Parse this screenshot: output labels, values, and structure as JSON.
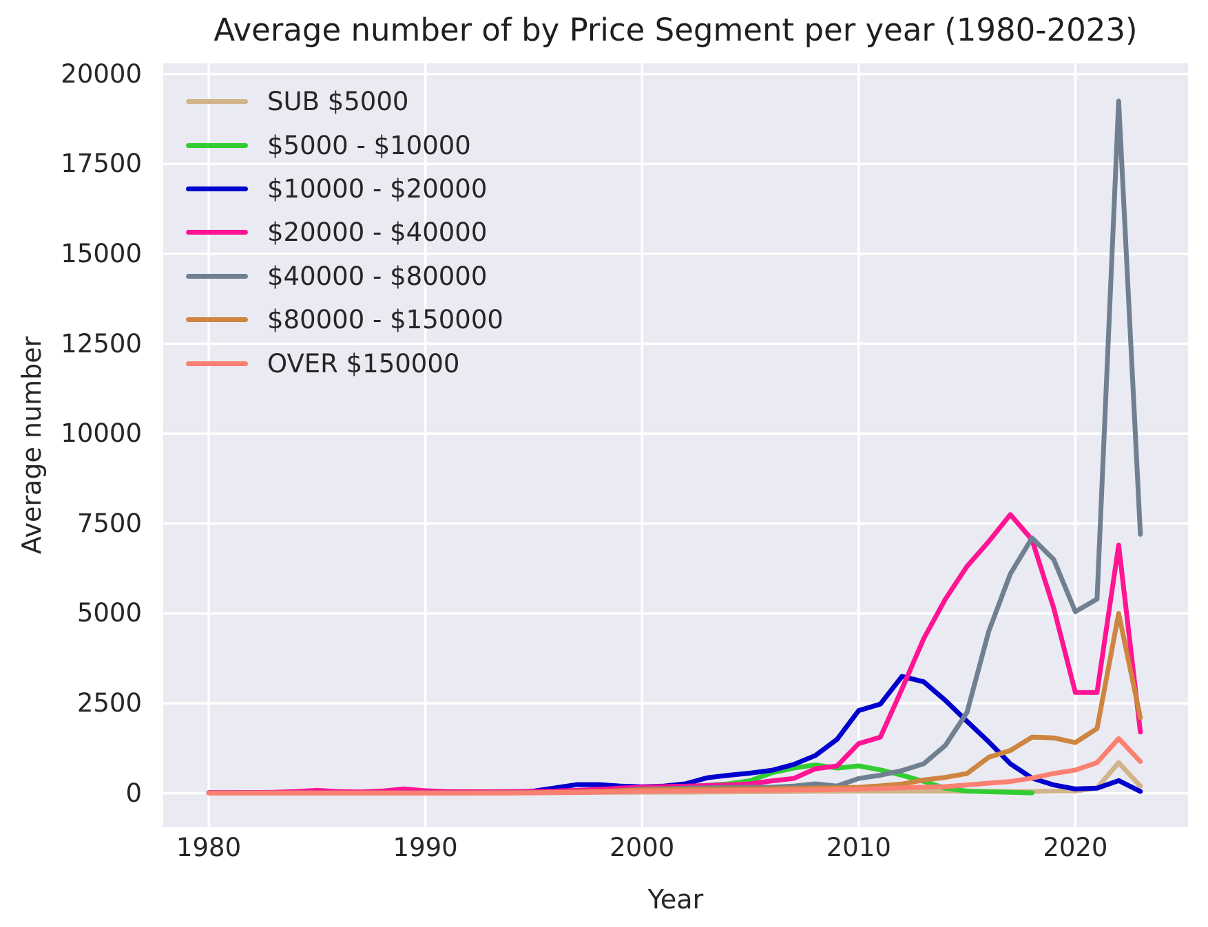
{
  "chart_data": {
    "type": "line",
    "title": "Average number of by Price Segment per year (1980-2023)",
    "xlabel": "Year",
    "ylabel": "Average number",
    "x_ticks": [
      1980,
      1990,
      2000,
      2010,
      2020
    ],
    "y_ticks": [
      0,
      2500,
      5000,
      7500,
      10000,
      12500,
      15000,
      17500,
      20000
    ],
    "xlim": [
      1977.9,
      2025.2
    ],
    "ylim": [
      -945,
      20300
    ],
    "grid": true,
    "legend_position": "upper-left",
    "axes_background": "#eaeaf2",
    "grid_color": "#ffffff",
    "text_color": "#262626",
    "line_width": 7,
    "years": [
      1980,
      1981,
      1982,
      1983,
      1984,
      1985,
      1986,
      1987,
      1988,
      1989,
      1990,
      1991,
      1992,
      1993,
      1994,
      1995,
      1996,
      1997,
      1998,
      1999,
      2000,
      2001,
      2002,
      2003,
      2004,
      2005,
      2006,
      2007,
      2008,
      2009,
      2010,
      2011,
      2012,
      2013,
      2014,
      2015,
      2016,
      2017,
      2018,
      2019,
      2020,
      2021,
      2022,
      2023
    ],
    "series": [
      {
        "name": "SUB $5000",
        "color": "#d2b48c",
        "values": [
          15,
          15,
          15,
          15,
          15,
          15,
          15,
          15,
          15,
          15,
          15,
          15,
          15,
          15,
          15,
          15,
          20,
          20,
          25,
          25,
          30,
          30,
          30,
          35,
          35,
          40,
          40,
          45,
          50,
          50,
          55,
          55,
          55,
          55,
          55,
          50,
          50,
          45,
          45,
          60,
          60,
          150,
          850,
          200
        ]
      },
      {
        "name": "$5000 - $10000",
        "color": "#32cd32",
        "values": [
          10,
          10,
          10,
          10,
          10,
          10,
          10,
          10,
          10,
          10,
          12,
          12,
          12,
          12,
          15,
          20,
          30,
          40,
          60,
          100,
          150,
          170,
          190,
          220,
          260,
          350,
          570,
          700,
          790,
          700,
          760,
          650,
          500,
          330,
          140,
          60,
          40,
          25,
          10,
          null,
          null,
          null,
          null,
          null
        ]
      },
      {
        "name": "$10000 - $20000",
        "color": "#0000cd",
        "values": [
          15,
          15,
          15,
          15,
          15,
          15,
          15,
          15,
          15,
          15,
          20,
          20,
          20,
          25,
          30,
          60,
          150,
          240,
          240,
          200,
          180,
          200,
          260,
          430,
          500,
          560,
          640,
          800,
          1050,
          1500,
          2300,
          2480,
          3250,
          3100,
          2580,
          2000,
          1430,
          820,
          420,
          230,
          120,
          140,
          350,
          50
        ]
      },
      {
        "name": "$20000 - $40000",
        "color": "#ff1493",
        "values": [
          15,
          15,
          20,
          25,
          45,
          80,
          45,
          35,
          60,
          120,
          70,
          45,
          40,
          40,
          45,
          50,
          60,
          80,
          110,
          140,
          170,
          185,
          195,
          215,
          230,
          260,
          345,
          410,
          680,
          760,
          1380,
          1560,
          2900,
          4300,
          5400,
          6310,
          7000,
          7750,
          7050,
          5150,
          2800,
          2800,
          6900,
          1700
        ]
      },
      {
        "name": "$40000 - $80000",
        "color": "#708090",
        "values": [
          8,
          8,
          8,
          8,
          8,
          8,
          8,
          8,
          8,
          8,
          10,
          10,
          10,
          15,
          15,
          20,
          25,
          30,
          45,
          70,
          115,
          125,
          140,
          150,
          160,
          165,
          170,
          200,
          260,
          200,
          410,
          500,
          630,
          820,
          1330,
          2250,
          4500,
          6100,
          7100,
          6500,
          5050,
          5400,
          19250,
          7200
        ]
      },
      {
        "name": "$80000 - $150000",
        "color": "#cd853f",
        "values": [
          5,
          5,
          5,
          5,
          5,
          5,
          5,
          5,
          5,
          5,
          5,
          5,
          8,
          8,
          10,
          15,
          25,
          35,
          50,
          70,
          95,
          100,
          105,
          110,
          115,
          120,
          125,
          135,
          145,
          150,
          165,
          205,
          255,
          370,
          440,
          550,
          1000,
          1190,
          1560,
          1540,
          1410,
          1800,
          5000,
          2100
        ]
      },
      {
        "name": "OVER $150000",
        "color": "#fa8072",
        "values": [
          5,
          5,
          5,
          5,
          5,
          5,
          5,
          5,
          5,
          5,
          5,
          5,
          5,
          5,
          8,
          10,
          15,
          20,
          30,
          40,
          55,
          60,
          65,
          70,
          75,
          80,
          85,
          90,
          95,
          105,
          110,
          130,
          150,
          170,
          185,
          230,
          280,
          325,
          420,
          550,
          645,
          850,
          1520,
          880
        ]
      }
    ]
  }
}
